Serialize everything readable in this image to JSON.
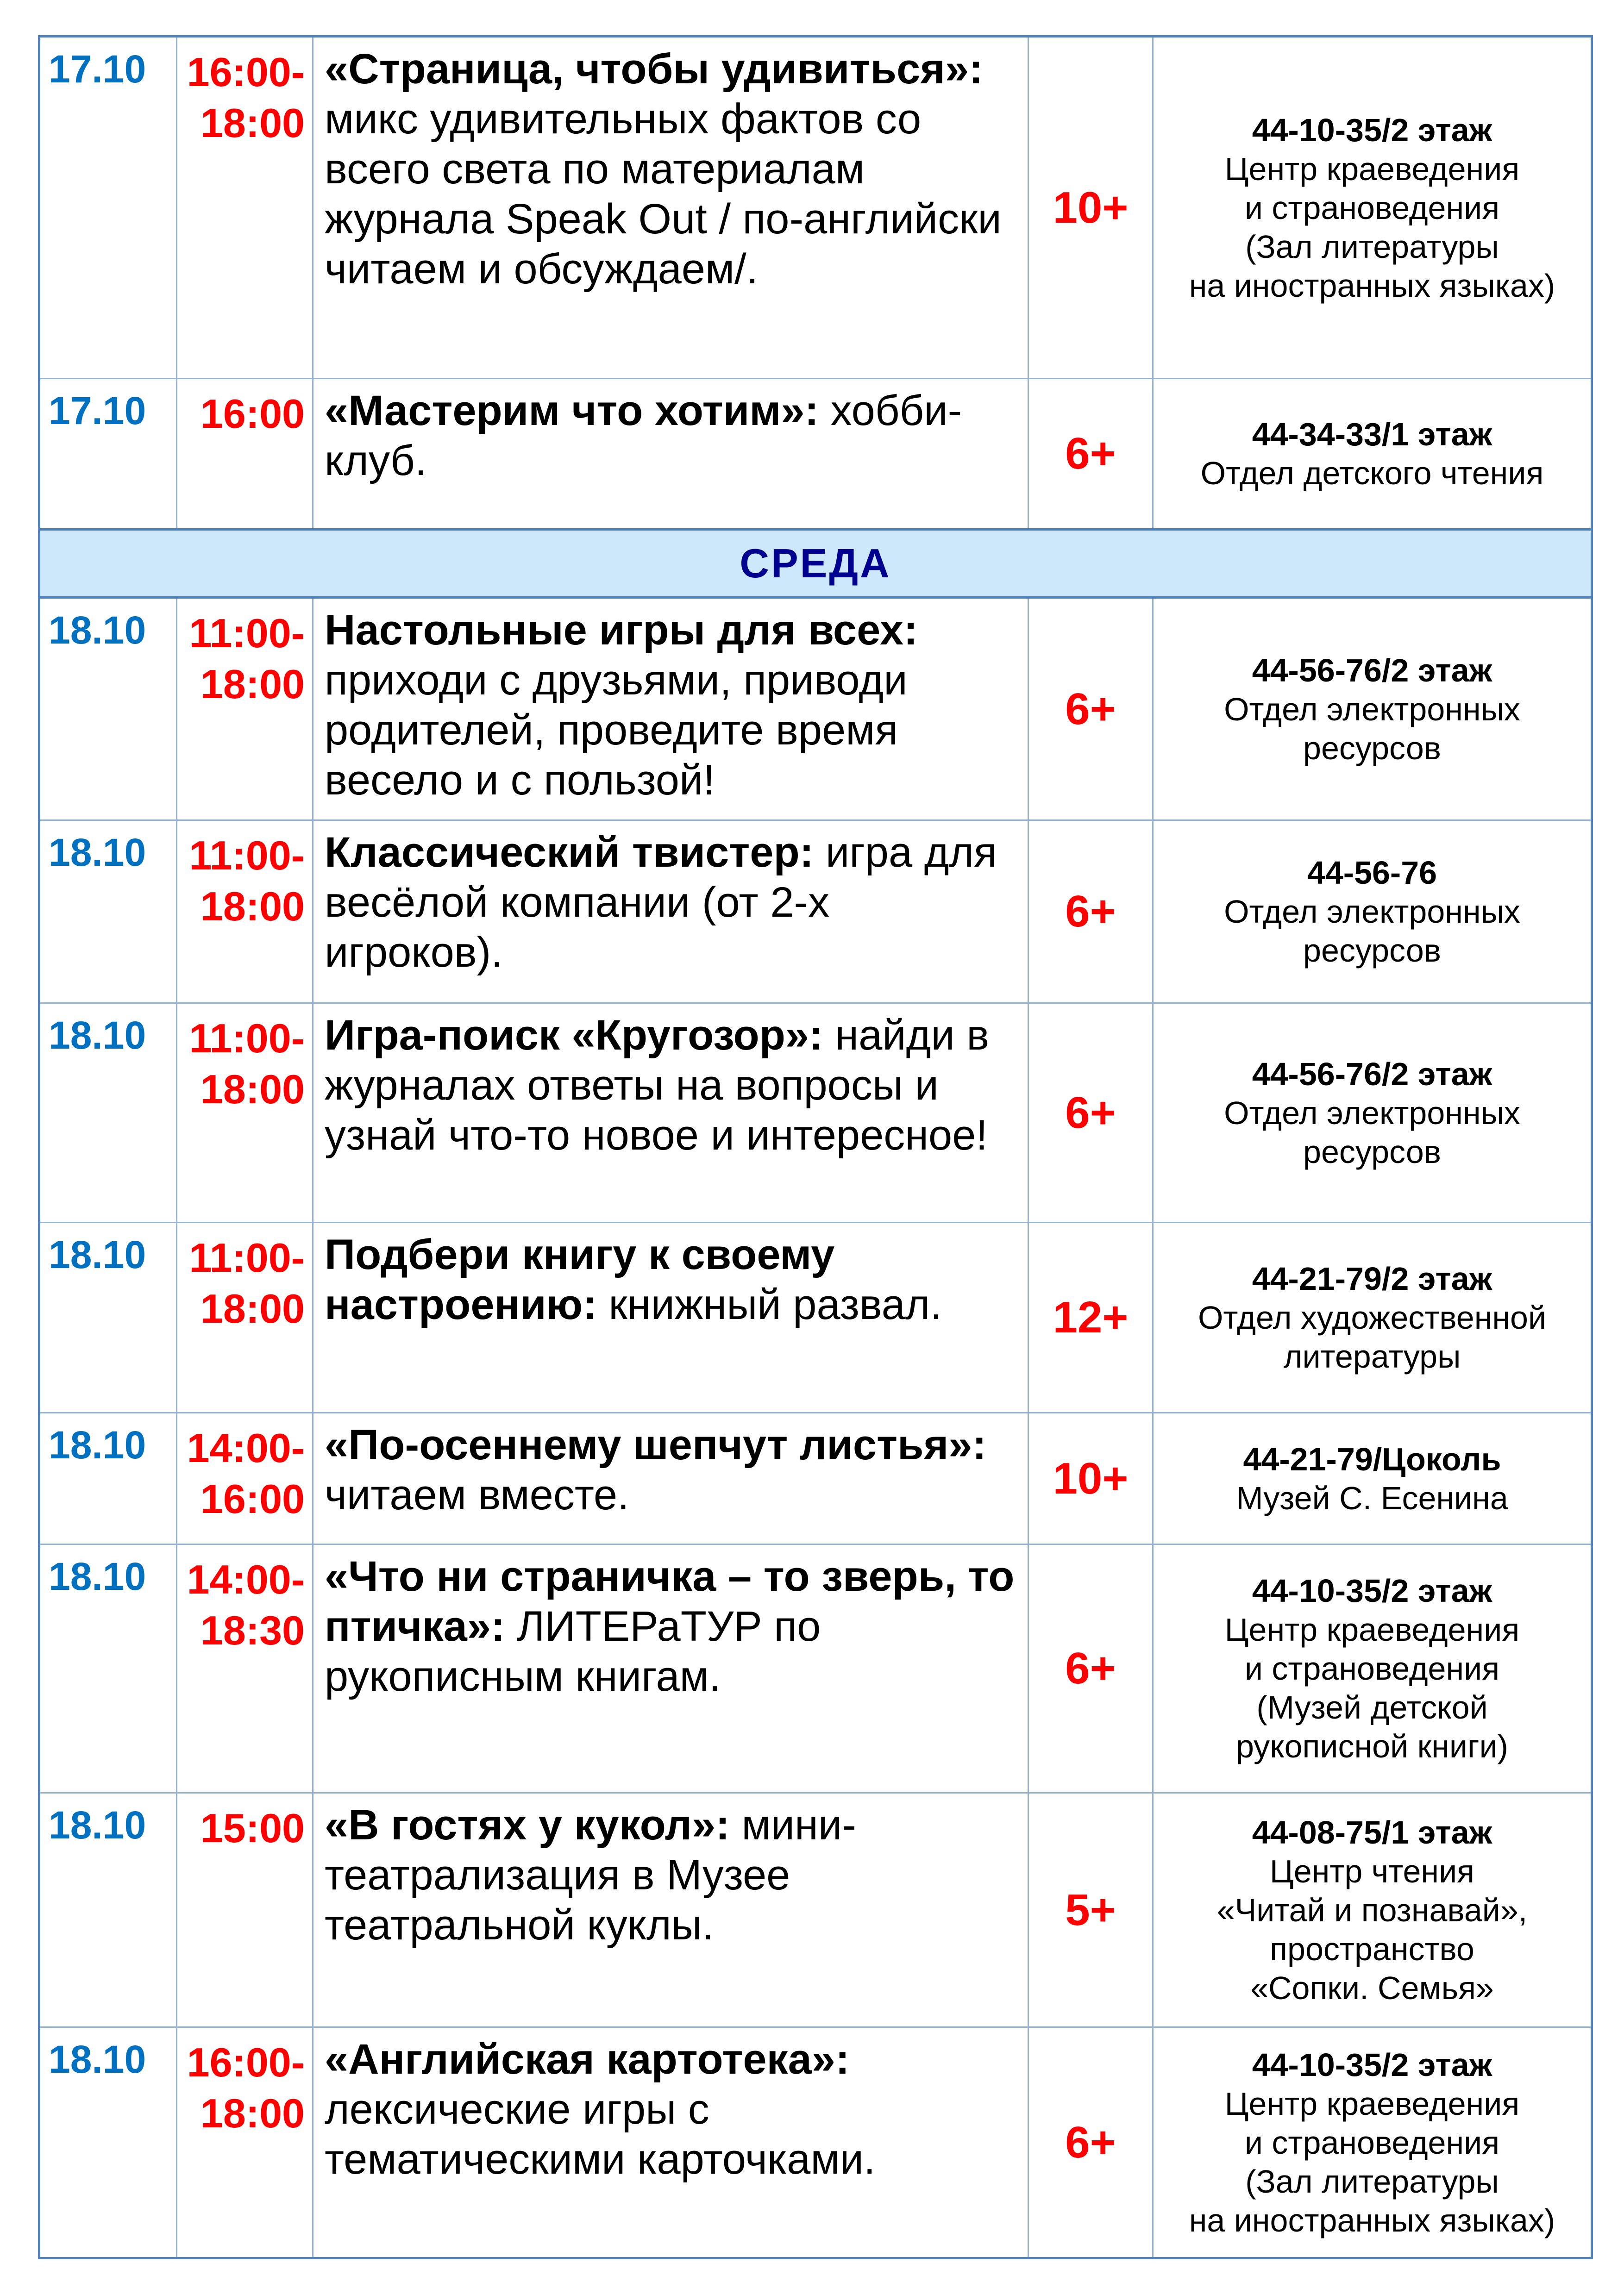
{
  "colors": {
    "date": "#0070c0",
    "time": "#ff0000",
    "age": "#ff0000",
    "day_header_bg": "#cce8fa",
    "day_header_text": "#000090",
    "border": "#4f81bd"
  },
  "rows": [
    {
      "type": "event",
      "date": "17.10",
      "time_start": "16:00-",
      "time_end": "18:00",
      "title": "«Страница, чтобы удивиться»:",
      "text": " микс удивительных фактов со всего света по материалам журнала Speak Out / по-английски читаем и обсуждаем/.",
      "age": "10+",
      "phone": "44-10-35/2 этаж",
      "place": [
        "Центр краеведения",
        "и страноведения",
        "(Зал литературы",
        "на иностранных языках)"
      ]
    },
    {
      "type": "event",
      "date": "17.10",
      "time_start": "16:00",
      "time_end": "",
      "title": "«Мастерим что хотим»:",
      "text": " хобби-клуб.",
      "age": "6+",
      "phone": "44-34-33/1 этаж",
      "place": [
        "Отдел детского чтения"
      ]
    },
    {
      "type": "day",
      "label": "СРЕДА"
    },
    {
      "type": "event",
      "date": "18.10",
      "time_start": "11:00-",
      "time_end": "18:00",
      "title": "Настольные игры для всех:",
      "text": " приходи с друзьями, приводи родителей, проведите время весело и с пользой!",
      "age": "6+",
      "phone": "44-56-76/2 этаж",
      "place": [
        "Отдел электронных",
        "ресурсов"
      ]
    },
    {
      "type": "event",
      "date": "18.10",
      "time_start": "11:00-",
      "time_end": "18:00",
      "title": "Классический твистер:",
      "text": " игра для весёлой компании (от 2-х игроков).",
      "age": "6+",
      "phone": "44-56-76",
      "place": [
        "Отдел электронных",
        "ресурсов"
      ]
    },
    {
      "type": "event",
      "date": "18.10",
      "time_start": "11:00-",
      "time_end": "18:00",
      "title": "Игра-поиск «Кругозор»:",
      "text": " найди в журналах ответы на вопросы и узнай что-то новое и интересное!",
      "age": "6+",
      "phone": "44-56-76/2 этаж",
      "place": [
        "Отдел электронных",
        "ресурсов"
      ]
    },
    {
      "type": "event",
      "date": "18.10",
      "time_start": "11:00-",
      "time_end": "18:00",
      "title": "Подбери книгу к своему настроению:",
      "text": " книжный развал.",
      "age": "12+",
      "phone": "44-21-79/2 этаж",
      "place": [
        "Отдел художественной",
        "литературы"
      ]
    },
    {
      "type": "event",
      "date": "18.10",
      "time_start": "14:00-",
      "time_end": "16:00",
      "title": "«По-осеннему шепчут листья»:",
      "text": " читаем вместе.",
      "age": "10+",
      "phone": "44-21-79/Цоколь",
      "place": [
        "Музей С. Есенина"
      ]
    },
    {
      "type": "event",
      "date": "18.10",
      "time_start": "14:00-",
      "time_end": "18:30",
      "title": "«Что ни страничка – то зверь, то птичка»:",
      "text": " ЛИТЕРаТУР по рукописным книгам.",
      "age": "6+",
      "phone": "44-10-35/2 этаж",
      "place": [
        "Центр краеведения",
        "и страноведения",
        "(Музей детской",
        "рукописной книги)"
      ]
    },
    {
      "type": "event",
      "date": "18.10",
      "time_start": "15:00",
      "time_end": "",
      "title": "«В гостях у кукол»:",
      "text": " мини-театрализация в Музее театральной куклы.",
      "age": "5+",
      "phone": "44-08-75/1 этаж",
      "place": [
        "Центр чтения",
        "«Читай и познавай»,",
        "пространство",
        "«Сопки. Семья»"
      ]
    },
    {
      "type": "event",
      "date": "18.10",
      "time_start": "16:00-",
      "time_end": "18:00",
      "title": "«Английская картотека»:",
      "text": " лексические игры с тематическими карточками.",
      "age": "6+",
      "phone": "44-10-35/2 этаж",
      "place": [
        "Центр краеведения",
        "и страноведения",
        "(Зал литературы",
        "на иностранных языках)"
      ]
    }
  ]
}
